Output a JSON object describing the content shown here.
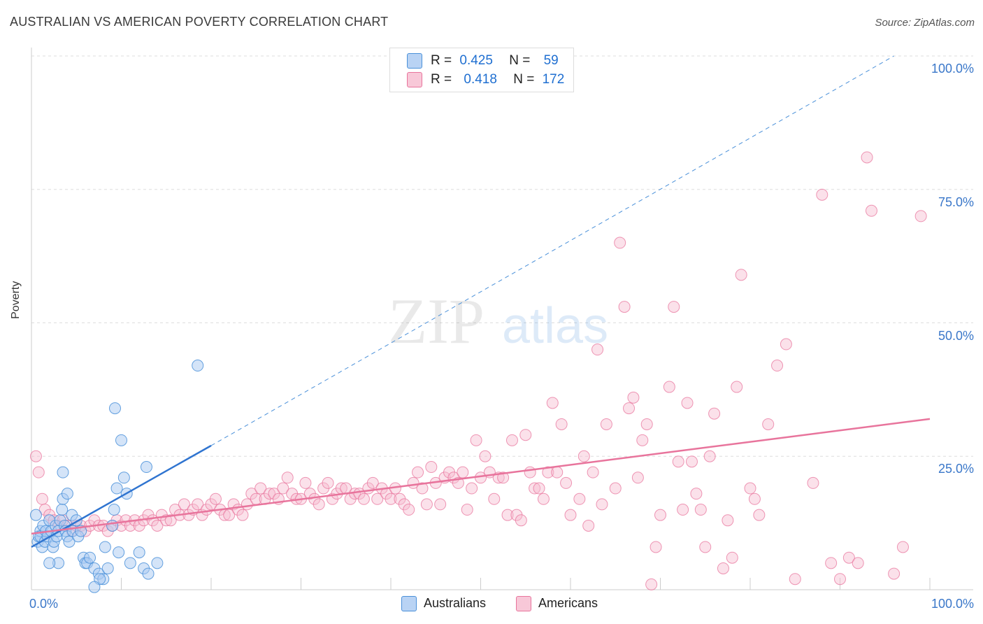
{
  "header": {
    "title": "AUSTRALIAN VS AMERICAN POVERTY CORRELATION CHART",
    "source": "Source: ZipAtlas.com"
  },
  "colors": {
    "blue": "#4a90d9",
    "blue_fill": "#a9c9f2",
    "pink": "#e8749c",
    "pink_fill": "#f6bcd0",
    "tick_blue": "#3a77c9"
  },
  "legend": {
    "rows": [
      {
        "r_label": "R =",
        "r_value": "0.425",
        "n_label": "N =",
        "n_value": "59"
      },
      {
        "r_label": "R =",
        "r_value": "0.418",
        "n_label": "N =",
        "n_value": "172"
      }
    ]
  },
  "chart_data": {
    "type": "scatter",
    "title": "AUSTRALIAN VS AMERICAN POVERTY CORRELATION CHART",
    "xlabel": "",
    "ylabel": "Poverty",
    "xlim": [
      0,
      100
    ],
    "ylim": [
      0,
      100
    ],
    "x_tick_labels": [
      "0.0%",
      "100.0%"
    ],
    "y_tick_labels": [
      "25.0%",
      "50.0%",
      "75.0%",
      "100.0%"
    ],
    "y_ticks": [
      25,
      50,
      75,
      100
    ],
    "grid": true,
    "legend_position": "top-center",
    "watermark": "ZIPatlas",
    "series": [
      {
        "name": "Australians",
        "color": "#4a90d9",
        "r": 0.425,
        "n": 59,
        "trend": {
          "x0": 0,
          "y0": 8,
          "x1": 20,
          "y1": 27,
          "dashed_to_x": 96,
          "dashed_to_y": 100
        },
        "points": [
          [
            0.5,
            14
          ],
          [
            0.7,
            9
          ],
          [
            0.8,
            10
          ],
          [
            1,
            11
          ],
          [
            1,
            10
          ],
          [
            1.2,
            8
          ],
          [
            1.3,
            12
          ],
          [
            1.5,
            9
          ],
          [
            1.6,
            11
          ],
          [
            1.8,
            10
          ],
          [
            2,
            13
          ],
          [
            2.2,
            11
          ],
          [
            2.4,
            8
          ],
          [
            2.5,
            9
          ],
          [
            2.7,
            12
          ],
          [
            2.8,
            10
          ],
          [
            3,
            11
          ],
          [
            3.2,
            13
          ],
          [
            3.4,
            15
          ],
          [
            3.5,
            17
          ],
          [
            3.5,
            22
          ],
          [
            3.7,
            12
          ],
          [
            3.8,
            11
          ],
          [
            4,
            18
          ],
          [
            4,
            10
          ],
          [
            4.2,
            9
          ],
          [
            4.5,
            14
          ],
          [
            4.6,
            11
          ],
          [
            5,
            13
          ],
          [
            5.2,
            10
          ],
          [
            5.5,
            11
          ],
          [
            5.8,
            6
          ],
          [
            6,
            5
          ],
          [
            6.2,
            5
          ],
          [
            6.5,
            6
          ],
          [
            7,
            4
          ],
          [
            7.5,
            3
          ],
          [
            8,
            2
          ],
          [
            8.2,
            8
          ],
          [
            8.5,
            4
          ],
          [
            9,
            12
          ],
          [
            9.2,
            15
          ],
          [
            9.5,
            19
          ],
          [
            9.7,
            7
          ],
          [
            10,
            28
          ],
          [
            10.3,
            21
          ],
          [
            10.6,
            18
          ],
          [
            11,
            5
          ],
          [
            12,
            7
          ],
          [
            12.5,
            4
          ],
          [
            13,
            3
          ],
          [
            7.6,
            2
          ],
          [
            3.0,
            5
          ],
          [
            2.0,
            5
          ],
          [
            9.3,
            34
          ],
          [
            12.8,
            23
          ],
          [
            14,
            5
          ],
          [
            18.5,
            42
          ],
          [
            7,
            0.5
          ]
        ]
      },
      {
        "name": "Americans",
        "color": "#e8749c",
        "r": 0.418,
        "n": 172,
        "trend": {
          "x0": 0,
          "y0": 10.5,
          "x1": 100,
          "y1": 32
        },
        "points": [
          [
            0.5,
            25
          ],
          [
            0.8,
            22
          ],
          [
            1.2,
            17
          ],
          [
            1.5,
            15
          ],
          [
            2,
            14
          ],
          [
            2.5,
            13
          ],
          [
            3,
            12
          ],
          [
            3.5,
            13
          ],
          [
            4,
            12
          ],
          [
            4.5,
            11
          ],
          [
            5,
            12
          ],
          [
            5.5,
            12
          ],
          [
            6,
            11
          ],
          [
            6.5,
            12
          ],
          [
            7,
            13
          ],
          [
            7.5,
            12
          ],
          [
            8,
            12
          ],
          [
            8.5,
            11
          ],
          [
            9,
            12
          ],
          [
            9.5,
            13
          ],
          [
            10,
            12
          ],
          [
            10.5,
            13
          ],
          [
            11,
            12
          ],
          [
            11.5,
            13
          ],
          [
            12,
            12
          ],
          [
            12.5,
            13
          ],
          [
            13,
            14
          ],
          [
            13.5,
            13
          ],
          [
            14,
            12
          ],
          [
            14.5,
            14
          ],
          [
            15,
            13
          ],
          [
            15.5,
            13
          ],
          [
            16,
            15
          ],
          [
            16.5,
            14
          ],
          [
            17,
            16
          ],
          [
            17.5,
            14
          ],
          [
            18,
            15
          ],
          [
            18.5,
            16
          ],
          [
            19,
            14
          ],
          [
            19.5,
            15
          ],
          [
            20,
            16
          ],
          [
            20.5,
            17
          ],
          [
            21,
            15
          ],
          [
            21.5,
            14
          ],
          [
            22,
            14
          ],
          [
            22.5,
            16
          ],
          [
            23,
            15
          ],
          [
            23.5,
            14
          ],
          [
            24,
            16
          ],
          [
            24.5,
            18
          ],
          [
            25,
            17
          ],
          [
            25.5,
            19
          ],
          [
            26,
            17
          ],
          [
            26.5,
            18
          ],
          [
            27,
            18
          ],
          [
            27.5,
            17
          ],
          [
            28,
            19
          ],
          [
            28.5,
            21
          ],
          [
            29,
            18
          ],
          [
            29.5,
            17
          ],
          [
            30,
            17
          ],
          [
            30.5,
            20
          ],
          [
            31,
            18
          ],
          [
            31.5,
            17
          ],
          [
            32,
            16
          ],
          [
            32.5,
            19
          ],
          [
            33,
            20
          ],
          [
            33.5,
            17
          ],
          [
            34,
            18
          ],
          [
            34.5,
            19
          ],
          [
            35,
            19
          ],
          [
            35.5,
            17
          ],
          [
            36,
            18
          ],
          [
            36.5,
            18
          ],
          [
            37,
            17
          ],
          [
            37.5,
            19
          ],
          [
            38,
            20
          ],
          [
            38.5,
            17
          ],
          [
            39,
            19
          ],
          [
            39.5,
            18
          ],
          [
            40,
            17
          ],
          [
            40.5,
            19
          ],
          [
            41,
            17
          ],
          [
            41.5,
            16
          ],
          [
            42,
            15
          ],
          [
            42.5,
            20
          ],
          [
            43,
            22
          ],
          [
            43.5,
            19
          ],
          [
            44,
            16
          ],
          [
            44.5,
            23
          ],
          [
            45,
            20
          ],
          [
            45.5,
            16
          ],
          [
            46,
            21
          ],
          [
            46.5,
            22
          ],
          [
            47,
            21
          ],
          [
            47.5,
            20
          ],
          [
            48,
            22
          ],
          [
            48.5,
            15
          ],
          [
            49,
            19
          ],
          [
            49.5,
            28
          ],
          [
            50,
            21
          ],
          [
            50.5,
            25
          ],
          [
            51,
            22
          ],
          [
            51.5,
            17
          ],
          [
            52,
            21
          ],
          [
            52.5,
            21
          ],
          [
            53,
            14
          ],
          [
            53.5,
            28
          ],
          [
            54,
            14
          ],
          [
            54.5,
            13
          ],
          [
            55,
            29
          ],
          [
            55.5,
            22
          ],
          [
            56,
            19
          ],
          [
            56.5,
            19
          ],
          [
            57,
            17
          ],
          [
            57.5,
            22
          ],
          [
            58,
            35
          ],
          [
            58.5,
            22
          ],
          [
            59,
            31
          ],
          [
            59.5,
            20
          ],
          [
            60,
            14
          ],
          [
            61,
            17
          ],
          [
            61.5,
            25
          ],
          [
            62,
            12
          ],
          [
            62.5,
            22
          ],
          [
            63,
            45
          ],
          [
            63.5,
            16
          ],
          [
            64,
            31
          ],
          [
            65,
            19
          ],
          [
            65.5,
            65
          ],
          [
            66,
            53
          ],
          [
            66.5,
            34
          ],
          [
            67,
            36
          ],
          [
            67.5,
            21
          ],
          [
            68,
            28
          ],
          [
            68.5,
            31
          ],
          [
            69,
            1
          ],
          [
            69.5,
            8
          ],
          [
            70,
            14
          ],
          [
            71,
            38
          ],
          [
            71.5,
            53
          ],
          [
            72,
            24
          ],
          [
            72.5,
            15
          ],
          [
            73,
            35
          ],
          [
            73.5,
            24
          ],
          [
            74,
            18
          ],
          [
            74.5,
            15
          ],
          [
            75,
            8
          ],
          [
            75.5,
            25
          ],
          [
            76,
            33
          ],
          [
            77,
            4
          ],
          [
            77.5,
            13
          ],
          [
            78,
            6
          ],
          [
            78.5,
            38
          ],
          [
            79,
            59
          ],
          [
            80,
            19
          ],
          [
            80.5,
            17
          ],
          [
            81,
            14
          ],
          [
            82,
            31
          ],
          [
            83,
            42
          ],
          [
            84,
            46
          ],
          [
            85,
            2
          ],
          [
            87,
            20
          ],
          [
            88,
            74
          ],
          [
            89,
            5
          ],
          [
            90,
            2
          ],
          [
            91,
            6
          ],
          [
            92,
            5
          ],
          [
            93,
            81
          ],
          [
            93.5,
            71
          ],
          [
            96,
            3
          ],
          [
            97,
            8
          ],
          [
            99,
            70
          ]
        ]
      }
    ]
  },
  "bottom_legend": {
    "items": [
      {
        "label": "Australians"
      },
      {
        "label": "Americans"
      }
    ]
  }
}
